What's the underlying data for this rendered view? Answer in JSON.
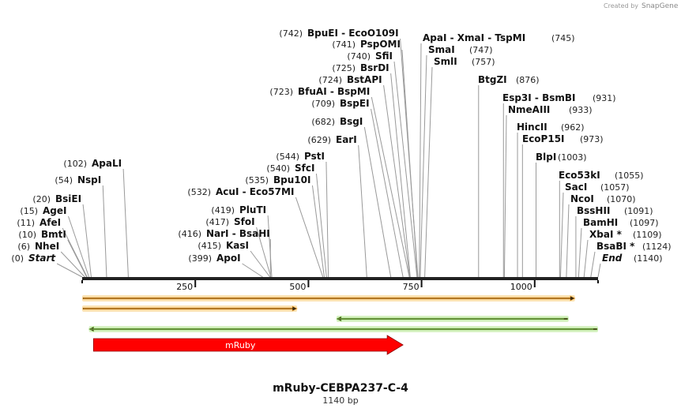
{
  "credit": {
    "text": "Created by",
    "brand": "SnapGene"
  },
  "title": "mRuby-CEBPA237-C-4",
  "length_label": "1140 bp",
  "length_bp": 1140,
  "ticks": [
    {
      "pos": 250,
      "label": "250"
    },
    {
      "pos": 500,
      "label": "500"
    },
    {
      "pos": 750,
      "label": "750"
    },
    {
      "pos": 1000,
      "label": "1000"
    }
  ],
  "sites_left": [
    {
      "pos": 0,
      "num": "(0)",
      "name": "Start",
      "italic": true
    },
    {
      "pos": 6,
      "num": "(6)",
      "name": "NheI"
    },
    {
      "pos": 10,
      "num": "(10)",
      "name": "BmtI"
    },
    {
      "pos": 11,
      "num": "(11)",
      "name": "AfeI"
    },
    {
      "pos": 15,
      "num": "(15)",
      "name": "AgeI"
    },
    {
      "pos": 20,
      "num": "(20)",
      "name": "BsiEI"
    },
    {
      "pos": 54,
      "num": "(54)",
      "name": "NspI"
    },
    {
      "pos": 102,
      "num": "(102)",
      "name": "ApaLI"
    },
    {
      "pos": 399,
      "num": "(399)",
      "name": "ApoI"
    },
    {
      "pos": 415,
      "num": "(415)",
      "name": "KasI"
    },
    {
      "pos": 416,
      "num": "(416)",
      "name": "NarI  -  BsaHI"
    },
    {
      "pos": 417,
      "num": "(417)",
      "name": "SfoI"
    },
    {
      "pos": 419,
      "num": "(419)",
      "name": "PluTI"
    },
    {
      "pos": 532,
      "num": "(532)",
      "name": "AcuI  -  Eco57MI"
    },
    {
      "pos": 535,
      "num": "(535)",
      "name": "Bpu10I"
    },
    {
      "pos": 540,
      "num": "(540)",
      "name": "SfcI"
    },
    {
      "pos": 544,
      "num": "(544)",
      "name": "PstI"
    },
    {
      "pos": 629,
      "num": "(629)",
      "name": "EarI"
    },
    {
      "pos": 682,
      "num": "(682)",
      "name": "BsgI"
    },
    {
      "pos": 709,
      "num": "(709)",
      "name": "BspEI"
    },
    {
      "pos": 723,
      "num": "(723)",
      "name": "BfuAI  -  BspMI"
    },
    {
      "pos": 724,
      "num": "(724)",
      "name": "BstAPI"
    },
    {
      "pos": 725,
      "num": "(725)",
      "name": "BsrDI"
    },
    {
      "pos": 740,
      "num": "(740)",
      "name": "SfiI"
    },
    {
      "pos": 741,
      "num": "(741)",
      "name": "PspOMI"
    },
    {
      "pos": 742,
      "num": "(742)",
      "name": "BpuEI  -  EcoO109I"
    }
  ],
  "sites_right": [
    {
      "pos": 745,
      "num": "(745)",
      "name": "ApaI  -  XmaI  -  TspMI"
    },
    {
      "pos": 747,
      "num": "(747)",
      "name": "SmaI"
    },
    {
      "pos": 757,
      "num": "(757)",
      "name": "SmlI"
    },
    {
      "pos": 876,
      "num": "(876)",
      "name": "BtgZI"
    },
    {
      "pos": 931,
      "num": "(931)",
      "name": "Esp3I  -  BsmBI"
    },
    {
      "pos": 933,
      "num": "(933)",
      "name": "NmeAIII"
    },
    {
      "pos": 962,
      "num": "(962)",
      "name": "HincII"
    },
    {
      "pos": 973,
      "num": "(973)",
      "name": "EcoP15I"
    },
    {
      "pos": 1003,
      "num": "(1003)",
      "name": "BlpI"
    },
    {
      "pos": 1055,
      "num": "(1055)",
      "name": "Eco53kI"
    },
    {
      "pos": 1057,
      "num": "(1057)",
      "name": "SacI"
    },
    {
      "pos": 1070,
      "num": "(1070)",
      "name": "NcoI"
    },
    {
      "pos": 1091,
      "num": "(1091)",
      "name": "BssHII"
    },
    {
      "pos": 1097,
      "num": "(1097)",
      "name": "BamHI"
    },
    {
      "pos": 1109,
      "num": "(1109)",
      "name": "XbaI *"
    },
    {
      "pos": 1124,
      "num": "(1124)",
      "name": "BsaBI *"
    },
    {
      "pos": 1140,
      "num": "(1140)",
      "name": "End",
      "italic": true
    }
  ],
  "features": [
    {
      "name": "orange-arrow-1",
      "start": 0,
      "end": 1089,
      "dir": "fwd",
      "color": "#f0a030",
      "fill": "#fbe3b4"
    },
    {
      "name": "orange-arrow-2",
      "start": 0,
      "end": 475,
      "dir": "fwd",
      "color": "#f0a030",
      "fill": "#fbe3b4"
    },
    {
      "name": "green-arrow-1",
      "start": 562,
      "end": 1075,
      "dir": "rev",
      "color": "#7ec850",
      "fill": "#d8f2c4"
    },
    {
      "name": "green-arrow-2",
      "start": 15,
      "end": 1140,
      "dir": "rev",
      "color": "#7ec850",
      "fill": "#d8f2c4"
    }
  ],
  "mruby": {
    "label": "mRuby",
    "start": 25,
    "end": 709,
    "color": "#ff0000"
  }
}
